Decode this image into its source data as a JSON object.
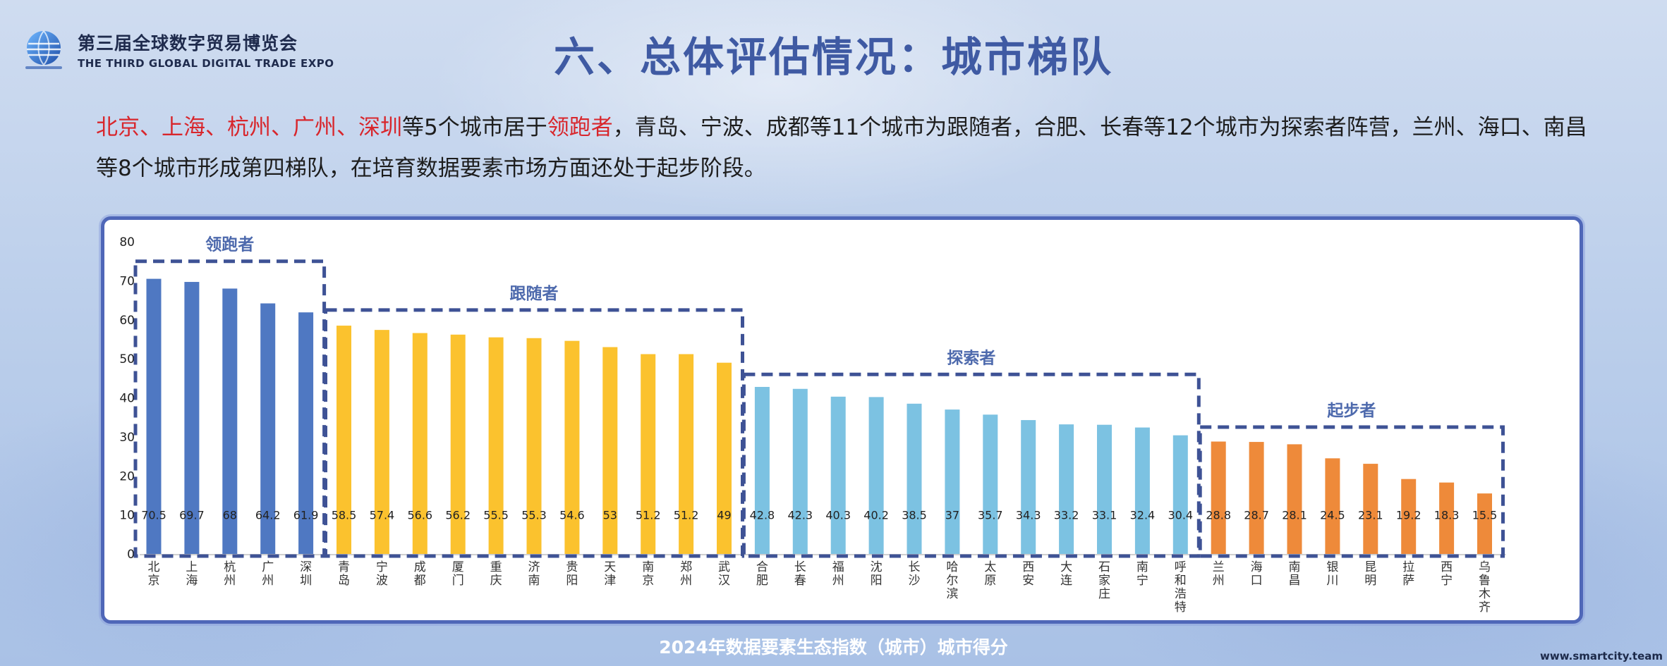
{
  "header": {
    "logo_cn": "第三届全球数字贸易博览会",
    "logo_en": "THE THIRD GLOBAL DIGITAL TRADE EXPO",
    "title": "六、总体评估情况：城市梯队"
  },
  "summary": {
    "leaders": [
      "北京",
      "上海",
      "杭州",
      "广州",
      "深圳"
    ],
    "sep": "、",
    "text_mid": "等5个城市居于",
    "leader_term": "领跑者",
    "text_rest": "，青岛、宁波、成都等11个城市为跟随者，合肥、长春等12个城市为探索者阵营，兰州、海口、南昌等8个城市形成第四梯队，在培育数据要素市场方面还处于起步阶段。"
  },
  "chart_data": {
    "type": "bar",
    "title": "",
    "xlabel": "",
    "ylabel": "",
    "ylim": [
      0,
      80
    ],
    "yticks": [
      0,
      10,
      20,
      30,
      40,
      50,
      60,
      70,
      80
    ],
    "categories": [
      "北京",
      "上海",
      "杭州",
      "广州",
      "深圳",
      "青岛",
      "宁波",
      "成都",
      "厦门",
      "重庆",
      "济南",
      "贵阳",
      "天津",
      "南京",
      "郑州",
      "武汉",
      "合肥",
      "长春",
      "福州",
      "沈阳",
      "长沙",
      "哈尔滨",
      "太原",
      "西安",
      "大连",
      "石家庄",
      "南宁",
      "呼和浩特",
      "兰州",
      "海口",
      "南昌",
      "银川",
      "昆明",
      "拉萨",
      "西宁",
      "乌鲁木齐"
    ],
    "values": [
      70.5,
      69.7,
      68,
      64.2,
      61.9,
      58.5,
      57.4,
      56.6,
      56.2,
      55.5,
      55.3,
      54.6,
      53,
      51.2,
      51.2,
      49,
      42.8,
      42.3,
      40.3,
      40.2,
      38.5,
      37,
      35.7,
      34.3,
      33.2,
      33.1,
      32.4,
      30.4,
      28.8,
      28.7,
      28.1,
      24.5,
      23.1,
      19.2,
      18.3,
      15.5
    ],
    "groups": [
      {
        "name": "领跑者",
        "start": 0,
        "end": 4,
        "color": "#4f78c2",
        "box_top": 75
      },
      {
        "name": "跟随者",
        "start": 5,
        "end": 15,
        "color": "#fbc22e",
        "box_top": 62.5
      },
      {
        "name": "探索者",
        "start": 16,
        "end": 27,
        "color": "#7cc2e2",
        "box_top": 46
      },
      {
        "name": "起步者",
        "start": 28,
        "end": 35,
        "color": "#ee8a3a",
        "box_top": 32.5
      }
    ],
    "box_color": "#3e5295",
    "value_label_y": 10,
    "grid": false
  },
  "footer": {
    "caption": "2024年数据要素生态指数（城市）城市得分",
    "site": "www.smartcity.team"
  }
}
